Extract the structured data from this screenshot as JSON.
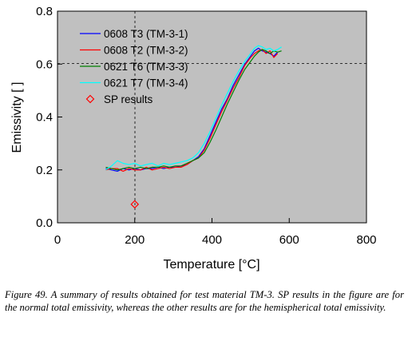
{
  "chart_data": {
    "type": "line",
    "xlabel": "Temperature  [°C]",
    "ylabel": "Emissivity  [  ]",
    "xlim": [
      0,
      800
    ],
    "ylim": [
      0.0,
      0.8
    ],
    "x_ticks": [
      "0",
      "200",
      "400",
      "600",
      "800"
    ],
    "y_ticks": [
      "0.0",
      "0.2",
      "0.4",
      "0.6",
      "0.8"
    ],
    "grid": "dashed reference lines at x=200 and y=0.6",
    "background": "#c0c0c0",
    "legend_position": "top-left",
    "series": [
      {
        "name": "0608 T3 (TM-3-1)",
        "color": "#0000ff",
        "x": [
          125,
          140,
          155,
          170,
          185,
          200,
          215,
          230,
          245,
          260,
          275,
          290,
          305,
          320,
          335,
          350,
          365,
          380,
          395,
          410,
          425,
          440,
          455,
          470,
          485,
          500,
          510,
          520,
          530,
          540,
          550,
          560,
          570
        ],
        "y": [
          0.205,
          0.2,
          0.195,
          0.205,
          0.2,
          0.205,
          0.2,
          0.205,
          0.205,
          0.21,
          0.205,
          0.21,
          0.21,
          0.215,
          0.22,
          0.235,
          0.25,
          0.28,
          0.33,
          0.38,
          0.43,
          0.47,
          0.52,
          0.56,
          0.6,
          0.63,
          0.65,
          0.66,
          0.65,
          0.645,
          0.64,
          0.63,
          0.645
        ]
      },
      {
        "name": "0608 T2 (TM-3-2)",
        "color": "#ff0000",
        "x": [
          125,
          140,
          155,
          170,
          185,
          200,
          215,
          230,
          245,
          260,
          275,
          290,
          305,
          320,
          335,
          350,
          365,
          380,
          395,
          410,
          425,
          440,
          455,
          470,
          485,
          500,
          510,
          520,
          530,
          540,
          550,
          560,
          570
        ],
        "y": [
          0.2,
          0.205,
          0.205,
          0.195,
          0.205,
          0.2,
          0.2,
          0.21,
          0.2,
          0.205,
          0.21,
          0.205,
          0.21,
          0.21,
          0.22,
          0.235,
          0.245,
          0.275,
          0.32,
          0.37,
          0.42,
          0.465,
          0.51,
          0.55,
          0.595,
          0.625,
          0.64,
          0.65,
          0.655,
          0.64,
          0.65,
          0.625,
          0.64
        ]
      },
      {
        "name": "0621 T6 (TM-3-3)",
        "color": "#008000",
        "x": [
          125,
          140,
          155,
          170,
          185,
          200,
          215,
          230,
          245,
          260,
          275,
          290,
          305,
          320,
          335,
          350,
          365,
          380,
          395,
          410,
          425,
          440,
          455,
          470,
          485,
          500,
          510,
          520,
          530,
          540,
          550,
          560,
          570,
          580
        ],
        "y": [
          0.21,
          0.205,
          0.2,
          0.205,
          0.21,
          0.205,
          0.21,
          0.205,
          0.21,
          0.21,
          0.215,
          0.21,
          0.215,
          0.215,
          0.225,
          0.235,
          0.245,
          0.265,
          0.305,
          0.35,
          0.4,
          0.45,
          0.495,
          0.54,
          0.58,
          0.61,
          0.63,
          0.645,
          0.655,
          0.65,
          0.64,
          0.65,
          0.645,
          0.65
        ]
      },
      {
        "name": "0621 T7 (TM-3-4)",
        "color": "#00ffff",
        "x": [
          125,
          140,
          155,
          170,
          185,
          200,
          215,
          230,
          245,
          260,
          275,
          290,
          305,
          320,
          335,
          350,
          365,
          380,
          395,
          410,
          425,
          440,
          455,
          470,
          485,
          500,
          510,
          520,
          530,
          540,
          550,
          560,
          570,
          580
        ],
        "y": [
          0.2,
          0.215,
          0.235,
          0.225,
          0.22,
          0.225,
          0.215,
          0.22,
          0.225,
          0.215,
          0.225,
          0.22,
          0.225,
          0.23,
          0.235,
          0.245,
          0.265,
          0.3,
          0.345,
          0.395,
          0.445,
          0.49,
          0.535,
          0.575,
          0.61,
          0.64,
          0.66,
          0.67,
          0.665,
          0.655,
          0.66,
          0.65,
          0.655,
          0.665
        ]
      }
    ],
    "points": [
      {
        "name": "SP results",
        "color": "#ff0000",
        "marker": "diamond-open",
        "x": [
          200
        ],
        "y": [
          0.07
        ]
      }
    ],
    "legend": [
      "0608 T3 (TM-3-1)",
      "0608 T2 (TM-3-2)",
      "0621 T6 (TM-3-3)",
      "0621 T7 (TM-3-4)",
      "SP results"
    ]
  },
  "caption": "Figure 49. A summary of results obtained for test material TM-3. SP results in the figure are for the normal total emissivity, whereas the other results are for the hemispherical total emissivity."
}
